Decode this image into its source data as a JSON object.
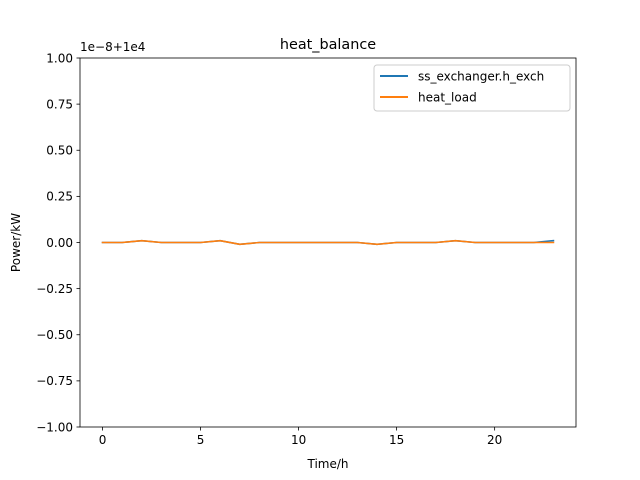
{
  "chart_data": {
    "type": "line",
    "title": "heat_balance",
    "xlabel": "Time/h",
    "ylabel": "Power/kW",
    "offset_text": "1e−8+1e4",
    "x_ticks": [
      0,
      5,
      10,
      15,
      20
    ],
    "x_tick_labels": [
      "0",
      "5",
      "10",
      "15",
      "20"
    ],
    "y_ticks": [
      -1.0,
      -0.75,
      -0.5,
      -0.25,
      0.0,
      0.25,
      0.5,
      0.75,
      1.0
    ],
    "y_tick_labels": [
      "−1.00",
      "−0.75",
      "−0.50",
      "−0.25",
      "0.00",
      "0.25",
      "0.50",
      "0.75",
      "1.00"
    ],
    "xlim": [
      -1.15,
      24.15
    ],
    "ylim": [
      -1.0,
      1.0
    ],
    "grid": false,
    "legend_position": "top-right",
    "x": [
      0,
      1,
      2,
      3,
      4,
      5,
      6,
      7,
      8,
      9,
      10,
      11,
      12,
      13,
      14,
      15,
      16,
      17,
      18,
      19,
      20,
      21,
      22,
      23
    ],
    "series": [
      {
        "name": "ss_exchanger.h_exch",
        "color": "#1f77b4",
        "values": [
          0.0,
          0.0,
          0.01,
          0.0,
          0.0,
          0.0,
          0.01,
          -0.01,
          0.0,
          0.0,
          0.0,
          0.0,
          0.0,
          0.0,
          -0.01,
          0.0,
          0.0,
          0.0,
          0.01,
          0.0,
          0.0,
          0.0,
          0.0,
          0.01
        ]
      },
      {
        "name": "heat_load",
        "color": "#ff7f0e",
        "values": [
          0.0,
          0.0,
          0.01,
          0.0,
          0.0,
          0.0,
          0.01,
          -0.01,
          0.0,
          0.0,
          0.0,
          0.0,
          0.0,
          0.0,
          -0.01,
          0.0,
          0.0,
          0.0,
          0.01,
          0.0,
          0.0,
          0.0,
          0.0,
          0.0
        ]
      }
    ]
  }
}
